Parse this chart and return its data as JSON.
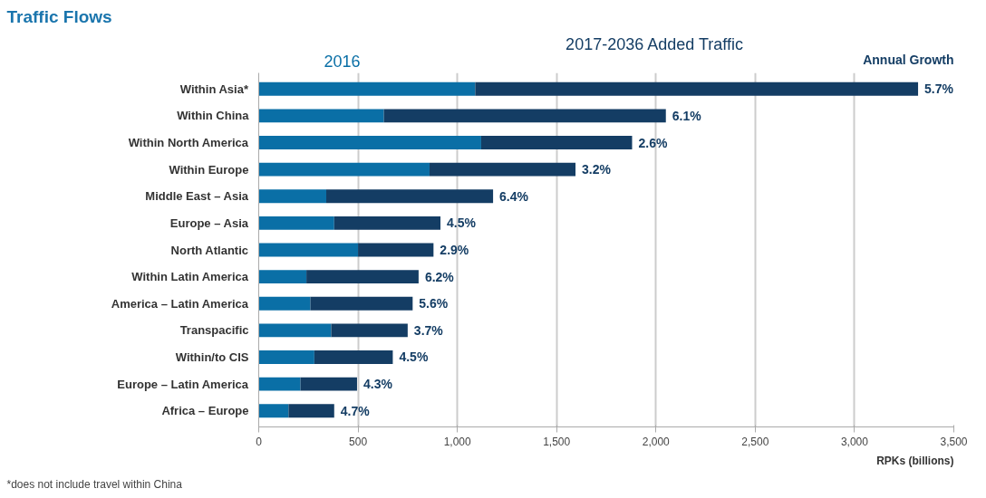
{
  "chart_data": {
    "type": "bar",
    "orientation": "horizontal",
    "stacked": true,
    "title": "Traffic Flows",
    "xlabel": "RPKs (billions)",
    "categories": [
      "Within Asia*",
      "Within China",
      "Within North America",
      "Within Europe",
      "Middle East – Asia",
      "Europe – Asia",
      "North Atlantic",
      "Within Latin America",
      "America – Latin America",
      "Transpacific",
      "Within/to CIS",
      "Europe – Latin America",
      "Africa – Europe"
    ],
    "series": [
      {
        "name": "2016",
        "color": "#0a6fa6",
        "values": [
          1090,
          630,
          1120,
          860,
          340,
          380,
          500,
          240,
          260,
          365,
          280,
          210,
          150
        ]
      },
      {
        "name": "2017-2036 Added Traffic",
        "color": "#143d64",
        "values": [
          2230,
          1420,
          760,
          735,
          840,
          535,
          380,
          565,
          515,
          385,
          395,
          285,
          230
        ]
      }
    ],
    "xlim": [
      0,
      3500
    ],
    "xticks": [
      0,
      {
        "value": 500,
        "label": "500"
      },
      {
        "value": 1000,
        "label": "1,000"
      },
      {
        "value": 1500,
        "label": "1,500"
      },
      {
        "value": 2000,
        "label": "2,000"
      },
      {
        "value": 2500,
        "label": "2,500"
      },
      {
        "value": 3000,
        "label": "3,000"
      },
      {
        "value": 3500,
        "label": "3,500"
      }
    ],
    "grid": "x",
    "legend": "top",
    "annotations": [
      "Annual Growth",
      "*does not include travel within China",
      {
        "text": "5.7%",
        "x": 3320,
        "y": "Within Asia*"
      },
      {
        "text": "6.1%",
        "x": 2050,
        "y": "Within China"
      },
      {
        "text": "2.6%",
        "x": 1880,
        "y": "Within North America"
      },
      {
        "text": "3.2%",
        "x": 1595,
        "y": "Within Europe"
      },
      {
        "text": "6.4%",
        "x": 1180,
        "y": "Middle East – Asia"
      },
      {
        "text": "4.5%",
        "x": 915,
        "y": "Europe – Asia"
      },
      {
        "text": "2.9%",
        "x": 880,
        "y": "North Atlantic"
      },
      {
        "text": "6.2%",
        "x": 805,
        "y": "Within Latin America"
      },
      {
        "text": "5.6%",
        "x": 775,
        "y": "America – Latin America"
      },
      {
        "text": "3.7%",
        "x": 750,
        "y": "Transpacific"
      },
      {
        "text": "4.5%",
        "x": 675,
        "y": "Within/to CIS"
      },
      {
        "text": "4.3%",
        "x": 495,
        "y": "Europe – Latin America"
      },
      {
        "text": "4.7%",
        "x": 380,
        "y": "Africa – Europe"
      }
    ]
  }
}
